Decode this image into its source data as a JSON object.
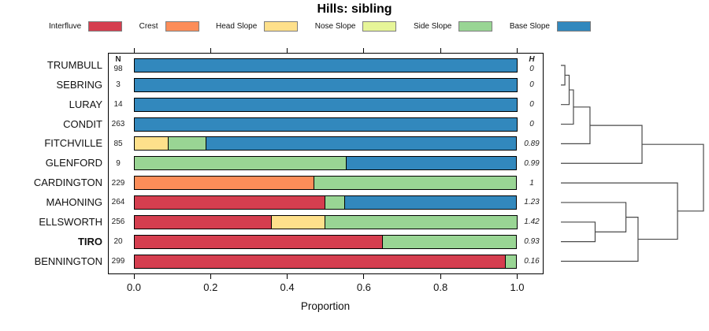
{
  "title": "Hills: sibling",
  "columns": {
    "n_header": "N",
    "h_header": "H"
  },
  "legend": {
    "items": [
      {
        "label": "Interfluve",
        "color": "#D53E4F"
      },
      {
        "label": "Crest",
        "color": "#FC8D59"
      },
      {
        "label": "Head Slope",
        "color": "#FEE08B"
      },
      {
        "label": "Nose Slope",
        "color": "#E6F598"
      },
      {
        "label": "Side Slope",
        "color": "#99D594"
      },
      {
        "label": "Base Slope",
        "color": "#3288BD"
      }
    ]
  },
  "chart_data": {
    "type": "bar",
    "orientation": "horizontal",
    "stacked": true,
    "title": "Hills: sibling",
    "xlabel": "Proportion",
    "xlim": [
      0,
      1
    ],
    "xticks": [
      0.0,
      0.2,
      0.4,
      0.6,
      0.8,
      1.0
    ],
    "xtick_labels": [
      "0.0",
      "0.2",
      "0.4",
      "0.6",
      "0.8",
      "1.0"
    ],
    "categories": [
      "Interfluve",
      "Crest",
      "Head Slope",
      "Nose Slope",
      "Side Slope",
      "Base Slope"
    ],
    "rows": [
      {
        "name": "TRUMBULL",
        "n": 98,
        "h": "0",
        "bold": false,
        "segments": [
          {
            "category": "Base Slope",
            "value": 1.0
          }
        ]
      },
      {
        "name": "SEBRING",
        "n": 3,
        "h": "0",
        "bold": false,
        "segments": [
          {
            "category": "Base Slope",
            "value": 1.0
          }
        ]
      },
      {
        "name": "LURAY",
        "n": 14,
        "h": "0",
        "bold": false,
        "segments": [
          {
            "category": "Base Slope",
            "value": 1.0
          }
        ]
      },
      {
        "name": "CONDIT",
        "n": 263,
        "h": "0",
        "bold": false,
        "segments": [
          {
            "category": "Base Slope",
            "value": 1.0
          }
        ]
      },
      {
        "name": "FITCHVILLE",
        "n": 85,
        "h": "0.89",
        "bold": false,
        "segments": [
          {
            "category": "Head Slope",
            "value": 0.09
          },
          {
            "category": "Side Slope",
            "value": 0.1
          },
          {
            "category": "Base Slope",
            "value": 0.81
          }
        ]
      },
      {
        "name": "GLENFORD",
        "n": 9,
        "h": "0.99",
        "bold": false,
        "segments": [
          {
            "category": "Side Slope",
            "value": 0.556
          },
          {
            "category": "Base Slope",
            "value": 0.444
          }
        ]
      },
      {
        "name": "CARDINGTON",
        "n": 229,
        "h": "1",
        "bold": false,
        "segments": [
          {
            "category": "Crest",
            "value": 0.47
          },
          {
            "category": "Side Slope",
            "value": 0.53
          }
        ]
      },
      {
        "name": "MAHONING",
        "n": 264,
        "h": "1.23",
        "bold": false,
        "segments": [
          {
            "category": "Interfluve",
            "value": 0.5
          },
          {
            "category": "Side Slope",
            "value": 0.05
          },
          {
            "category": "Base Slope",
            "value": 0.45
          }
        ]
      },
      {
        "name": "ELLSWORTH",
        "n": 256,
        "h": "1.42",
        "bold": false,
        "segments": [
          {
            "category": "Interfluve",
            "value": 0.36
          },
          {
            "category": "Head Slope",
            "value": 0.14
          },
          {
            "category": "Side Slope",
            "value": 0.5
          }
        ]
      },
      {
        "name": "TIRO",
        "n": 20,
        "h": "0.93",
        "bold": true,
        "segments": [
          {
            "category": "Interfluve",
            "value": 0.65
          },
          {
            "category": "Side Slope",
            "value": 0.35
          }
        ]
      },
      {
        "name": "BENNINGTON",
        "n": 299,
        "h": "0.16",
        "bold": false,
        "segments": [
          {
            "category": "Interfluve",
            "value": 0.97
          },
          {
            "category": "Side Slope",
            "value": 0.03
          }
        ]
      }
    ],
    "dendrogram": {
      "merges": [
        {
          "id": "m1",
          "a": "TRUMBULL",
          "b": "SEBRING",
          "h": 0.028
        },
        {
          "id": "m2",
          "a": "m1",
          "b": "LURAY",
          "h": 0.058
        },
        {
          "id": "m3",
          "a": "m2",
          "b": "CONDIT",
          "h": 0.088
        },
        {
          "id": "m4",
          "a": "m3",
          "b": "FITCHVILLE",
          "h": 0.204
        },
        {
          "id": "m5",
          "a": "m4",
          "b": "GLENFORD",
          "h": 0.569
        },
        {
          "id": "m7",
          "a": "ELLSWORTH",
          "b": "TIRO",
          "h": 0.24
        },
        {
          "id": "m8",
          "a": "MAHONING",
          "b": "m7",
          "h": 0.456
        },
        {
          "id": "m9",
          "a": "m8",
          "b": "BENNINGTON",
          "h": 0.541
        },
        {
          "id": "m10",
          "a": "CARDINGTON",
          "b": "m9",
          "h": 0.818
        },
        {
          "id": "root",
          "a": "m5",
          "b": "m10",
          "h": 1.0
        }
      ]
    }
  }
}
